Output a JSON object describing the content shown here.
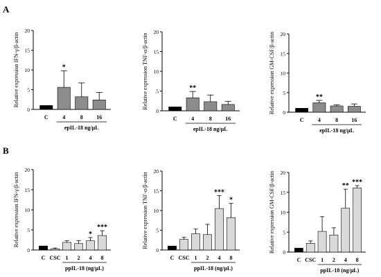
{
  "panel_labels": {
    "a": "A",
    "b": "B"
  },
  "colors": {
    "panel_a_bar": "#8c8c8c",
    "panel_b_bar": "#d9d9d9",
    "control_bar": "#000000",
    "axis": "#000000"
  },
  "chart_data": [
    {
      "type": "bar",
      "panel": "A",
      "categories": [
        "C",
        "4",
        "8",
        "16"
      ],
      "values": [
        1.0,
        5.6,
        3.2,
        2.4
      ],
      "errors": [
        0.0,
        4.2,
        3.5,
        1.9
      ],
      "significance": [
        "",
        "*",
        "",
        ""
      ],
      "xlabel": "epIL-18 ng/µL",
      "ylabel": "Relative expression IFN-γ/β-actin",
      "ylim": [
        0,
        20
      ],
      "yticks": [
        0,
        5,
        10,
        15,
        20
      ]
    },
    {
      "type": "bar",
      "panel": "A",
      "categories": [
        "C",
        "4",
        "8",
        "16"
      ],
      "values": [
        1.0,
        3.3,
        2.3,
        1.6
      ],
      "errors": [
        0.0,
        1.6,
        1.7,
        0.8
      ],
      "significance": [
        "",
        "**",
        "",
        ""
      ],
      "xlabel": "epIL-18 ng/µL",
      "ylabel": "Relative expression TNF-α/β-actin",
      "ylim": [
        0,
        20
      ],
      "yticks": [
        0,
        5,
        10,
        15,
        20
      ]
    },
    {
      "type": "bar",
      "panel": "A",
      "categories": [
        "C",
        "4",
        "8",
        "16"
      ],
      "values": [
        1.0,
        2.4,
        1.6,
        1.5
      ],
      "errors": [
        0.0,
        0.6,
        0.3,
        0.6
      ],
      "significance": [
        "",
        "**",
        "",
        ""
      ],
      "xlabel": "epIL-18 ng/µL",
      "ylabel": "Relative expression GM-CSF/β-actin",
      "ylim": [
        0,
        20
      ],
      "yticks": [
        0,
        5,
        10,
        15,
        20
      ]
    },
    {
      "type": "bar",
      "panel": "B",
      "categories": [
        "C",
        "CSC",
        "1",
        "2",
        "4",
        "8"
      ],
      "values": [
        1.0,
        0.3,
        1.9,
        1.6,
        2.3,
        3.6
      ],
      "errors": [
        0.0,
        0.2,
        0.4,
        0.7,
        0.8,
        1.2
      ],
      "significance": [
        "",
        "",
        "",
        "",
        "*",
        "***"
      ],
      "xlabel": "ppIL-18 (ng/µL)",
      "ylabel": "Relative expression IFN-γ/β-actin",
      "ylim": [
        0,
        20
      ],
      "yticks": [
        0,
        5,
        10,
        15,
        20
      ]
    },
    {
      "type": "bar",
      "panel": "B",
      "categories": [
        "C",
        "CSC",
        "1",
        "2",
        "4",
        "8"
      ],
      "values": [
        1.0,
        2.7,
        4.1,
        3.9,
        10.5,
        8.2
      ],
      "errors": [
        0.0,
        0.5,
        1.2,
        2.6,
        3.3,
        3.6
      ],
      "significance": [
        "",
        "",
        "",
        "",
        "***",
        "*"
      ],
      "xlabel": "ppIL-18 (ng/µL)",
      "ylabel": "Relative expression TNF-α/β-actin",
      "ylim": [
        0,
        20
      ],
      "yticks": [
        0,
        5,
        10,
        15,
        20
      ]
    },
    {
      "type": "bar",
      "panel": "B",
      "categories": [
        "C",
        "CSC",
        "1",
        "2",
        "4",
        "8"
      ],
      "values": [
        1.0,
        2.2,
        5.2,
        4.3,
        11.0,
        16.1
      ],
      "errors": [
        0.0,
        0.6,
        3.7,
        1.8,
        4.8,
        0.6
      ],
      "significance": [
        "",
        "",
        "",
        "",
        "**",
        "***"
      ],
      "xlabel": "ppIL-18 (ng/µL)",
      "ylabel": "Relative expression GM-CSF/β-actin",
      "ylim": [
        0,
        20
      ],
      "yticks": [
        0,
        5,
        10,
        15,
        20
      ]
    }
  ]
}
